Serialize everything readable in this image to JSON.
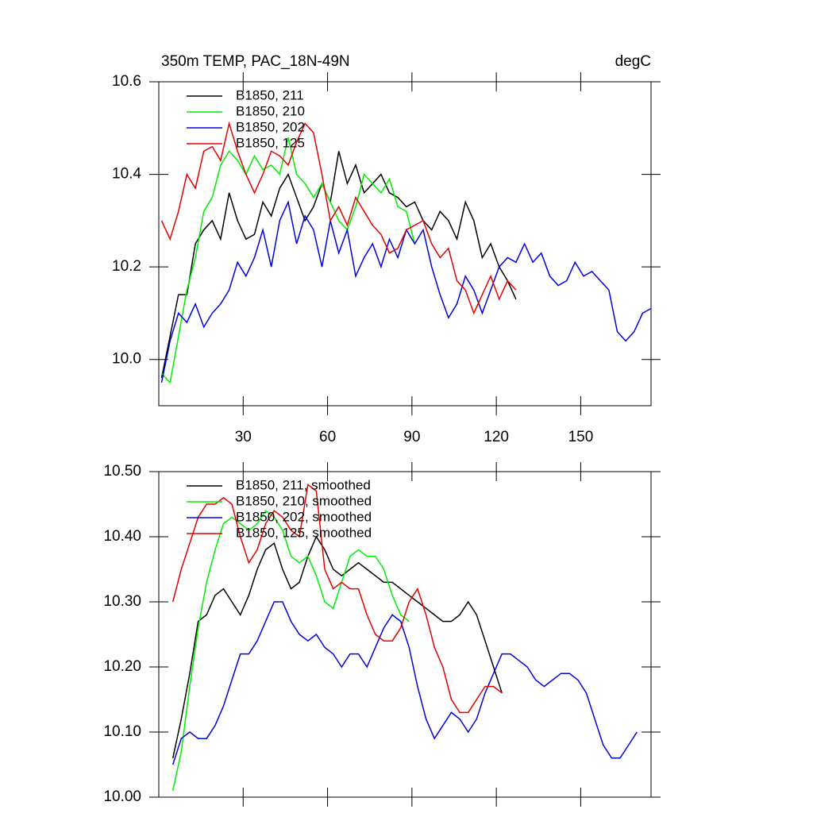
{
  "chart_data": [
    {
      "type": "line",
      "title": "350m TEMP, PAC_18N-49N",
      "units": "degC",
      "legend": "upper left",
      "xlim": [
        0,
        175
      ],
      "xticks": [
        30,
        60,
        90,
        120,
        150
      ],
      "ylim": [
        9.9,
        10.6
      ],
      "yticks": [
        {
          "value": 10,
          "label": "10.0"
        },
        10.2,
        10.4,
        {
          "value": 10.6,
          "label": "10.6"
        }
      ],
      "series": [
        {
          "name": "B1850, 211",
          "color": "#000000",
          "x": [
            1,
            4,
            7,
            10,
            13,
            16,
            19,
            22,
            25,
            28,
            31,
            34,
            37,
            40,
            43,
            46,
            49,
            52,
            55,
            58,
            61,
            64,
            67,
            70,
            73,
            76,
            79,
            82,
            85,
            88,
            91,
            94,
            97,
            100,
            103,
            106,
            109,
            112,
            115,
            118,
            121,
            124,
            127
          ],
          "values": [
            9.96,
            10.05,
            10.14,
            10.14,
            10.25,
            10.28,
            10.3,
            10.26,
            10.36,
            10.3,
            10.26,
            10.27,
            10.34,
            10.31,
            10.37,
            10.4,
            10.35,
            10.3,
            10.33,
            10.38,
            10.34,
            10.45,
            10.38,
            10.42,
            10.36,
            10.38,
            10.4,
            10.36,
            10.35,
            10.33,
            10.34,
            10.3,
            10.28,
            10.32,
            10.3,
            10.26,
            10.34,
            10.3,
            10.22,
            10.25,
            10.2,
            10.17,
            10.13
          ]
        },
        {
          "name": "B1850, 210",
          "color": "#00ee00",
          "x": [
            1,
            4,
            7,
            10,
            13,
            16,
            19,
            22,
            25,
            28,
            31,
            34,
            37,
            40,
            43,
            46,
            49,
            52,
            55,
            58,
            61,
            64,
            67,
            70,
            73,
            76,
            79,
            82,
            85,
            88,
            91
          ],
          "values": [
            9.97,
            9.95,
            10.05,
            10.15,
            10.22,
            10.32,
            10.35,
            10.42,
            10.45,
            10.43,
            10.4,
            10.44,
            10.41,
            10.42,
            10.4,
            10.48,
            10.4,
            10.38,
            10.35,
            10.38,
            10.34,
            10.3,
            10.28,
            10.33,
            10.4,
            10.38,
            10.36,
            10.39,
            10.33,
            10.32,
            10.25
          ]
        },
        {
          "name": "B1850, 202",
          "color": "#0000e6",
          "x": [
            1,
            4,
            7,
            10,
            13,
            16,
            19,
            22,
            25,
            28,
            31,
            34,
            37,
            40,
            43,
            46,
            49,
            52,
            55,
            58,
            61,
            64,
            67,
            70,
            73,
            76,
            79,
            82,
            85,
            88,
            91,
            94,
            97,
            100,
            103,
            106,
            109,
            112,
            115,
            118,
            121,
            124,
            127,
            130,
            133,
            136,
            139,
            142,
            145,
            148,
            151,
            154,
            157,
            160,
            163,
            166,
            169,
            172,
            175
          ],
          "values": [
            9.95,
            10.04,
            10.1,
            10.08,
            10.12,
            10.07,
            10.1,
            10.12,
            10.15,
            10.21,
            10.18,
            10.22,
            10.28,
            10.2,
            10.3,
            10.34,
            10.25,
            10.31,
            10.28,
            10.2,
            10.3,
            10.23,
            10.28,
            10.18,
            10.22,
            10.25,
            10.2,
            10.26,
            10.22,
            10.28,
            10.25,
            10.28,
            10.2,
            10.14,
            10.09,
            10.12,
            10.18,
            10.15,
            10.1,
            10.15,
            10.2,
            10.22,
            10.21,
            10.25,
            10.21,
            10.23,
            10.18,
            10.16,
            10.17,
            10.21,
            10.18,
            10.19,
            10.17,
            10.15,
            10.06,
            10.04,
            10.06,
            10.1,
            10.11
          ]
        },
        {
          "name": "B1850, 125",
          "color": "#e60000",
          "x": [
            1,
            4,
            7,
            10,
            13,
            16,
            19,
            22,
            25,
            28,
            31,
            34,
            37,
            40,
            43,
            46,
            49,
            52,
            55,
            58,
            61,
            64,
            67,
            70,
            73,
            76,
            79,
            82,
            85,
            88,
            91,
            94,
            97,
            100,
            103,
            106,
            109,
            112,
            115,
            118,
            121,
            124,
            127
          ],
          "values": [
            10.3,
            10.26,
            10.32,
            10.4,
            10.37,
            10.45,
            10.46,
            10.43,
            10.51,
            10.45,
            10.4,
            10.36,
            10.4,
            10.45,
            10.44,
            10.42,
            10.47,
            10.51,
            10.49,
            10.4,
            10.3,
            10.33,
            10.29,
            10.35,
            10.32,
            10.29,
            10.27,
            10.23,
            10.24,
            10.28,
            10.29,
            10.3,
            10.25,
            10.22,
            10.24,
            10.17,
            10.15,
            10.1,
            10.14,
            10.18,
            10.13,
            10.17,
            10.15
          ]
        }
      ]
    },
    {
      "type": "line",
      "legend": "upper left",
      "xlim": [
        0,
        175
      ],
      "xticks": [
        30,
        60,
        90,
        120,
        150
      ],
      "ylim": [
        10.0,
        10.5
      ],
      "yticks": [
        {
          "value": 10,
          "label": "10.00"
        },
        {
          "value": 10.1,
          "label": "10.10"
        },
        {
          "value": 10.2,
          "label": "10.20"
        },
        {
          "value": 10.3,
          "label": "10.30"
        },
        {
          "value": 10.4,
          "label": "10.40"
        },
        {
          "value": 10.5,
          "label": "10.50"
        }
      ],
      "series": [
        {
          "name": "B1850, 211, smoothed",
          "color": "#000000",
          "x": [
            5,
            8,
            11,
            14,
            17,
            20,
            23,
            26,
            29,
            32,
            35,
            38,
            41,
            44,
            47,
            50,
            53,
            56,
            59,
            62,
            65,
            68,
            71,
            74,
            77,
            80,
            83,
            86,
            89,
            92,
            95,
            98,
            101,
            104,
            107,
            110,
            113,
            116,
            119,
            122
          ],
          "values": [
            10.06,
            10.12,
            10.19,
            10.27,
            10.28,
            10.31,
            10.32,
            10.3,
            10.28,
            10.31,
            10.35,
            10.38,
            10.39,
            10.35,
            10.32,
            10.33,
            10.37,
            10.4,
            10.38,
            10.35,
            10.34,
            10.35,
            10.36,
            10.35,
            10.34,
            10.33,
            10.33,
            10.32,
            10.31,
            10.3,
            10.29,
            10.28,
            10.27,
            10.27,
            10.28,
            10.3,
            10.28,
            10.24,
            10.2,
            10.16
          ]
        },
        {
          "name": "B1850, 210, smoothed",
          "color": "#00ee00",
          "x": [
            5,
            8,
            11,
            14,
            17,
            20,
            23,
            26,
            29,
            32,
            35,
            38,
            41,
            44,
            47,
            50,
            53,
            56,
            59,
            62,
            65,
            68,
            71,
            74,
            77,
            80,
            83,
            86,
            89
          ],
          "values": [
            10.01,
            10.07,
            10.17,
            10.26,
            10.33,
            10.38,
            10.42,
            10.43,
            10.42,
            10.41,
            10.42,
            10.44,
            10.43,
            10.41,
            10.37,
            10.36,
            10.37,
            10.34,
            10.3,
            10.29,
            10.33,
            10.37,
            10.38,
            10.37,
            10.37,
            10.35,
            10.31,
            10.28,
            10.27
          ]
        },
        {
          "name": "B1850, 202, smoothed",
          "color": "#0000e6",
          "x": [
            5,
            8,
            11,
            14,
            17,
            20,
            23,
            26,
            29,
            32,
            35,
            38,
            41,
            44,
            47,
            50,
            53,
            56,
            59,
            62,
            65,
            68,
            71,
            74,
            77,
            80,
            83,
            86,
            89,
            92,
            95,
            98,
            101,
            104,
            107,
            110,
            113,
            116,
            119,
            122,
            125,
            128,
            131,
            134,
            137,
            140,
            143,
            146,
            149,
            152,
            155,
            158,
            161,
            164,
            167,
            170
          ],
          "values": [
            10.05,
            10.09,
            10.1,
            10.09,
            10.09,
            10.11,
            10.14,
            10.18,
            10.22,
            10.22,
            10.24,
            10.27,
            10.3,
            10.3,
            10.27,
            10.25,
            10.24,
            10.25,
            10.23,
            10.22,
            10.2,
            10.22,
            10.22,
            10.2,
            10.23,
            10.26,
            10.28,
            10.27,
            10.23,
            10.17,
            10.12,
            10.09,
            10.11,
            10.13,
            10.12,
            10.1,
            10.12,
            10.16,
            10.19,
            10.22,
            10.22,
            10.21,
            10.2,
            10.18,
            10.17,
            10.18,
            10.19,
            10.19,
            10.18,
            10.16,
            10.12,
            10.08,
            10.06,
            10.06,
            10.08,
            10.1
          ]
        },
        {
          "name": "B1850, 125, smoothed",
          "color": "#e60000",
          "x": [
            5,
            8,
            11,
            14,
            17,
            20,
            23,
            26,
            29,
            32,
            35,
            38,
            41,
            44,
            47,
            50,
            53,
            56,
            59,
            62,
            65,
            68,
            71,
            74,
            77,
            80,
            83,
            86,
            89,
            92,
            95,
            98,
            101,
            104,
            107,
            110,
            113,
            116,
            119,
            122
          ],
          "values": [
            10.3,
            10.35,
            10.39,
            10.43,
            10.45,
            10.45,
            10.46,
            10.45,
            10.4,
            10.36,
            10.38,
            10.42,
            10.44,
            10.43,
            10.41,
            10.4,
            10.48,
            10.47,
            10.35,
            10.32,
            10.33,
            10.32,
            10.32,
            10.28,
            10.25,
            10.24,
            10.24,
            10.26,
            10.3,
            10.32,
            10.28,
            10.23,
            10.2,
            10.15,
            10.13,
            10.13,
            10.15,
            10.17,
            10.17,
            10.16
          ]
        }
      ]
    }
  ]
}
